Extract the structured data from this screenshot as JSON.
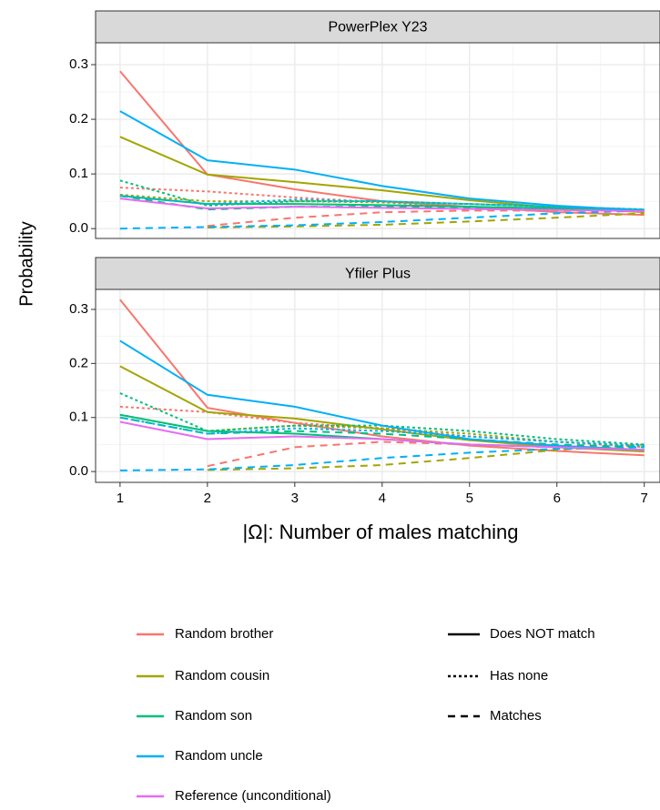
{
  "y_label": "Probability",
  "x_label": "|Ω|: Number of males matching",
  "legend": {
    "colors": [
      {
        "name": "Random brother",
        "color": "#F8766D"
      },
      {
        "name": "Random cousin",
        "color": "#A3A500"
      },
      {
        "name": "Random son",
        "color": "#00BF7D"
      },
      {
        "name": "Random uncle",
        "color": "#00B0F6"
      },
      {
        "name": "Reference (unconditional)",
        "color": "#E76BF3"
      }
    ],
    "linetypes": [
      {
        "name": "Does NOT match",
        "linetype": "solid"
      },
      {
        "name": "Has none",
        "linetype": "dotted"
      },
      {
        "name": "Matches",
        "linetype": "dashed"
      }
    ]
  },
  "chart_data": [
    {
      "type": "line",
      "title": "PowerPlex Y23",
      "x": [
        1,
        2,
        3,
        4,
        5,
        6,
        7
      ],
      "xlim": [
        0.72,
        7.18
      ],
      "xticks": [
        1,
        2,
        3,
        4,
        5,
        6,
        7
      ],
      "ylim": [
        -0.018,
        0.34
      ],
      "yticks": [
        {
          "value": 0,
          "label": "0.0"
        },
        0.1,
        0.2,
        0.3
      ],
      "grid": true,
      "series": [
        {
          "color": "#F8766D",
          "linetype": "solid",
          "values": [
            0.288,
            0.099,
            0.072,
            0.05,
            0.04,
            0.03,
            0.025
          ]
        },
        {
          "color": "#F8766D",
          "linetype": "dotted",
          "values": [
            0.075,
            0.068,
            0.057,
            0.048,
            0.04,
            0.035,
            0.032
          ]
        },
        {
          "color": "#F8766D",
          "linetype": "dashed",
          "values": [
            null,
            0.005,
            0.02,
            0.03,
            0.033,
            0.033,
            0.033
          ]
        },
        {
          "color": "#A3A500",
          "linetype": "solid",
          "values": [
            0.168,
            0.099,
            0.085,
            0.07,
            0.052,
            0.038,
            0.03
          ]
        },
        {
          "color": "#A3A500",
          "linetype": "dotted",
          "values": [
            0.062,
            0.05,
            0.05,
            0.048,
            0.045,
            0.04,
            0.035
          ]
        },
        {
          "color": "#A3A500",
          "linetype": "dashed",
          "values": [
            null,
            0.002,
            0.004,
            0.007,
            0.013,
            0.02,
            0.028
          ]
        },
        {
          "color": "#00BF7D",
          "linetype": "solid",
          "values": [
            0.06,
            0.045,
            0.045,
            0.043,
            0.04,
            0.037,
            0.033
          ]
        },
        {
          "color": "#00BF7D",
          "linetype": "dotted",
          "values": [
            0.088,
            0.042,
            0.05,
            0.05,
            0.045,
            0.04,
            0.035
          ]
        },
        {
          "color": "#00BF7D",
          "linetype": "dashed",
          "values": [
            0.06,
            0.035,
            0.04,
            0.04,
            0.038,
            0.036,
            0.033
          ]
        },
        {
          "color": "#00B0F6",
          "linetype": "solid",
          "values": [
            0.215,
            0.125,
            0.108,
            0.078,
            0.055,
            0.042,
            0.033
          ]
        },
        {
          "color": "#00B0F6",
          "linetype": "dotted",
          "values": [
            0.06,
            0.045,
            0.053,
            0.05,
            0.045,
            0.04,
            0.035
          ]
        },
        {
          "color": "#00B0F6",
          "linetype": "dashed",
          "values": [
            0,
            0.003,
            0.006,
            0.012,
            0.02,
            0.028,
            0.033
          ]
        },
        {
          "color": "#E76BF3",
          "linetype": "solid",
          "values": [
            0.055,
            0.037,
            0.04,
            0.038,
            0.036,
            0.034,
            0.032
          ]
        }
      ]
    },
    {
      "type": "line",
      "title": "Yfiler Plus",
      "x": [
        1,
        2,
        3,
        4,
        5,
        6,
        7
      ],
      "xlim": [
        0.72,
        7.18
      ],
      "xticks": [
        1,
        2,
        3,
        4,
        5,
        6,
        7
      ],
      "ylim": [
        -0.02,
        0.337
      ],
      "yticks": [
        {
          "value": 0,
          "label": "0.0"
        },
        0.1,
        0.2,
        0.3
      ],
      "grid": true,
      "series": [
        {
          "color": "#F8766D",
          "linetype": "solid",
          "values": [
            0.318,
            0.118,
            0.09,
            0.065,
            0.048,
            0.038,
            0.03
          ]
        },
        {
          "color": "#F8766D",
          "linetype": "dotted",
          "values": [
            0.12,
            0.11,
            0.09,
            0.08,
            0.065,
            0.055,
            0.045
          ]
        },
        {
          "color": "#F8766D",
          "linetype": "dashed",
          "values": [
            null,
            0.01,
            0.045,
            0.055,
            0.05,
            0.045,
            0.04
          ]
        },
        {
          "color": "#A3A500",
          "linetype": "solid",
          "values": [
            0.195,
            0.11,
            0.098,
            0.078,
            0.058,
            0.045,
            0.037
          ]
        },
        {
          "color": "#A3A500",
          "linetype": "dotted",
          "values": [
            0.105,
            0.075,
            0.085,
            0.08,
            0.07,
            0.055,
            0.048
          ]
        },
        {
          "color": "#A3A500",
          "linetype": "dashed",
          "values": [
            null,
            0.003,
            0.006,
            0.012,
            0.025,
            0.04,
            0.05
          ]
        },
        {
          "color": "#00BF7D",
          "linetype": "solid",
          "values": [
            0.105,
            0.075,
            0.07,
            0.06,
            0.05,
            0.045,
            0.04
          ]
        },
        {
          "color": "#00BF7D",
          "linetype": "dotted",
          "values": [
            0.145,
            0.075,
            0.085,
            0.085,
            0.075,
            0.06,
            0.05
          ]
        },
        {
          "color": "#00BF7D",
          "linetype": "dashed",
          "values": [
            0.1,
            0.07,
            0.075,
            0.07,
            0.06,
            0.05,
            0.045
          ]
        },
        {
          "color": "#00B0F6",
          "linetype": "solid",
          "values": [
            0.242,
            0.142,
            0.12,
            0.085,
            0.06,
            0.048,
            0.04
          ]
        },
        {
          "color": "#00B0F6",
          "linetype": "dotted",
          "values": [
            0.1,
            0.07,
            0.08,
            0.075,
            0.065,
            0.055,
            0.048
          ]
        },
        {
          "color": "#00B0F6",
          "linetype": "dashed",
          "values": [
            0.002,
            0.004,
            0.012,
            0.025,
            0.035,
            0.042,
            0.045
          ]
        },
        {
          "color": "#E76BF3",
          "linetype": "solid",
          "values": [
            0.092,
            0.06,
            0.065,
            0.06,
            0.05,
            0.045,
            0.04
          ]
        }
      ]
    }
  ]
}
